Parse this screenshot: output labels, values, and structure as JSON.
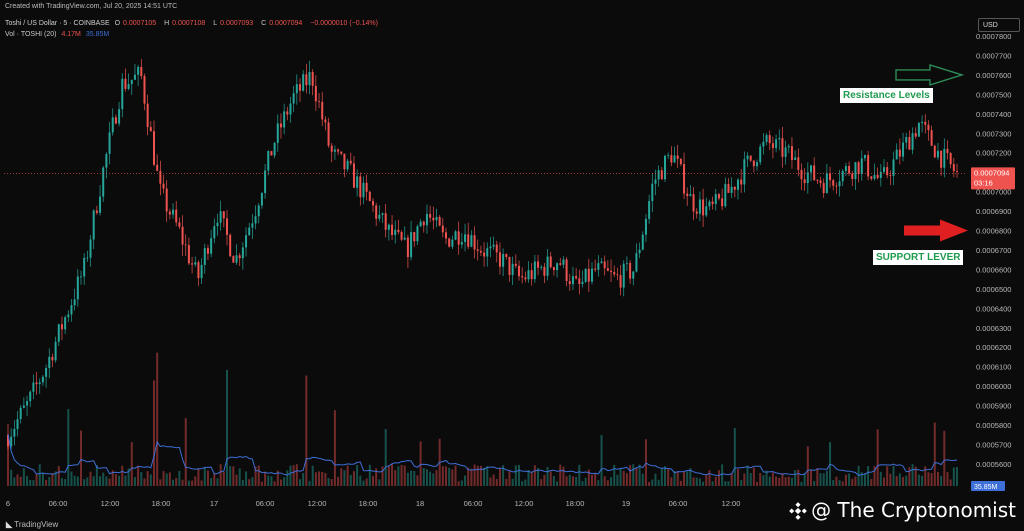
{
  "header": {
    "created": "Created with TradingView.com, Jul 20, 2025 14:51 UTC"
  },
  "legend": {
    "symbol": "Toshi / US Dollar · 5 · COINBASE",
    "open_label": "O",
    "open": "0.0007105",
    "high_label": "H",
    "high": "0.0007108",
    "low_label": "L",
    "low": "0.0007093",
    "close_label": "C",
    "close": "0.0007094",
    "change": "−0.0000010 (−0.14%)",
    "vol_label": "Vol · TOSHI (20)",
    "vol_value": "4.17M",
    "vol_ma": "35.85M"
  },
  "currency_button": "USD",
  "price_tag": {
    "price": "0.0007094",
    "timer": "03:16"
  },
  "vol_tag": "35.85M",
  "annotations": {
    "resistance": "Resistance Levels",
    "support": "SUPPORT LEVER"
  },
  "branding": {
    "tradingview": "TradingView",
    "watermark": "@ The Cryptonomist"
  },
  "colors": {
    "up": "#26a69a",
    "down": "#ef5350",
    "volume_ma": "#3d6fd8",
    "price_tag": "#ef5350",
    "resistance_arrow": "#2e8b57",
    "support_arrow": "#e02020"
  },
  "chart_data": {
    "type": "candlestick",
    "y_axis_ticks": [
      "0.0007800",
      "0.0007700",
      "0.0007600",
      "0.0007500",
      "0.0007400",
      "0.0007300",
      "0.0007200",
      "0.0007100",
      "0.0007000",
      "0.0006900",
      "0.0006800",
      "0.0006700",
      "0.0006600",
      "0.0006500",
      "0.0006400",
      "0.0006300",
      "0.0006200",
      "0.0006100",
      "0.0006000",
      "0.0005900",
      "0.0005800",
      "0.0005700",
      "0.0005600"
    ],
    "ylim": [
      0.00055,
      0.00078
    ],
    "x_axis_ticks": [
      "6",
      "06:00",
      "12:00",
      "18:00",
      "17",
      "06:00",
      "12:00",
      "18:00",
      "18",
      "06:00",
      "12:00",
      "18:00",
      "19",
      "06:00",
      "12:00"
    ],
    "approx_close_path": [
      0.000575,
      0.00059,
      0.00061,
      0.000635,
      0.00066,
      0.00071,
      0.000755,
      0.00076,
      0.0007,
      0.00068,
      0.000655,
      0.00069,
      0.000665,
      0.00069,
      0.000725,
      0.000748,
      0.00076,
      0.00072,
      0.00071,
      0.000695,
      0.00068,
      0.00067,
      0.00069,
      0.000675,
      0.00068,
      0.00067,
      0.000665,
      0.000655,
      0.00066,
      0.000665,
      0.00065,
      0.00066,
      0.000655,
      0.00066,
      0.000705,
      0.00072,
      0.000695,
      0.00069,
      0.0007,
      0.000715,
      0.000725,
      0.00072,
      0.00071,
      0.000705,
      0.00071,
      0.000715,
      0.000705,
      0.00072,
      0.000735,
      0.00072,
      0.000709
    ],
    "last_price": 0.0007094,
    "resistance_level": 0.00076,
    "support_level": 0.00068
  }
}
